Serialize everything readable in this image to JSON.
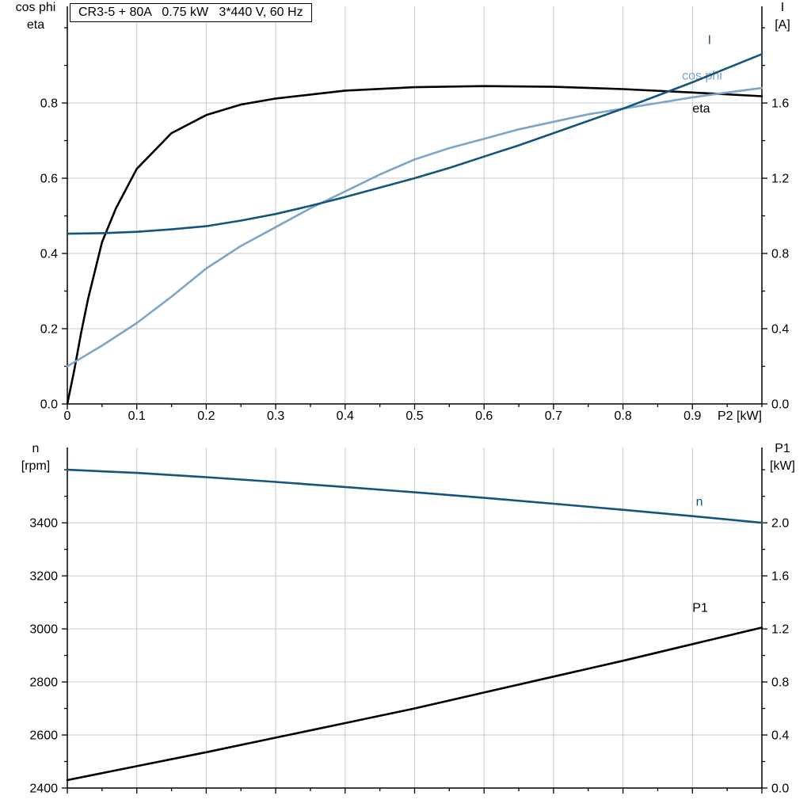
{
  "colors": {
    "dark_blue": "#14557e",
    "light_blue": "#7da4c9",
    "black": "#000000",
    "grid": "#c9c9c9",
    "axis": "#000000"
  },
  "chart_data": [
    {
      "type": "line",
      "title": "CR3-5 + 80A   0.75 kW   3*440 V, 60 Hz",
      "grid": true,
      "legend_position": "end-labels",
      "x_axis": {
        "label": "P2 [kW]",
        "min": 0,
        "max": 1.0,
        "major_ticks": [
          0,
          0.1,
          0.2,
          0.3,
          0.4,
          0.5,
          0.6,
          0.7,
          0.8,
          0.9
        ],
        "tick_labels": [
          "0",
          "0.1",
          "0.2",
          "0.3",
          "0.4",
          "0.5",
          "0.6",
          "0.7",
          "0.8",
          "0.9"
        ],
        "minor_step": 0.05
      },
      "left_axis": {
        "title_lines": [
          "cos phi",
          "eta"
        ],
        "min": 0,
        "max": 1.057,
        "major_ticks": [
          0,
          0.2,
          0.4,
          0.6,
          0.8
        ],
        "tick_labels": [
          "0.0",
          "0.2",
          "0.4",
          "0.6",
          "0.8"
        ],
        "minor_step": 0.1
      },
      "right_axis": {
        "title_lines": [
          "I",
          "[A]"
        ],
        "min": 0,
        "max": 2.114,
        "major_ticks": [
          0,
          0.4,
          0.8,
          1.2,
          1.6
        ],
        "tick_labels": [
          "0.0",
          "0.4",
          "0.8",
          "1.2",
          "1.6"
        ],
        "minor_step": 0.2
      },
      "series": [
        {
          "name": "eta",
          "axis": "left",
          "color": "#000000",
          "x": [
            0,
            0.01,
            0.02,
            0.03,
            0.05,
            0.07,
            0.1,
            0.15,
            0.2,
            0.25,
            0.3,
            0.4,
            0.5,
            0.6,
            0.7,
            0.8,
            0.9,
            1.0
          ],
          "y": [
            0,
            0.09,
            0.19,
            0.28,
            0.43,
            0.52,
            0.625,
            0.72,
            0.768,
            0.796,
            0.812,
            0.833,
            0.842,
            0.845,
            0.843,
            0.837,
            0.828,
            0.818
          ],
          "label": {
            "text": "eta",
            "x": 0.9,
            "y": 0.775
          }
        },
        {
          "name": "cos phi",
          "axis": "left",
          "color": "#7da4c9",
          "x": [
            0,
            0.05,
            0.1,
            0.15,
            0.2,
            0.25,
            0.3,
            0.35,
            0.4,
            0.45,
            0.5,
            0.55,
            0.6,
            0.65,
            0.7,
            0.75,
            0.8,
            0.85,
            0.9,
            0.95,
            1.0
          ],
          "y": [
            0.1,
            0.155,
            0.215,
            0.285,
            0.36,
            0.42,
            0.47,
            0.52,
            0.565,
            0.61,
            0.65,
            0.68,
            0.705,
            0.73,
            0.75,
            0.77,
            0.785,
            0.8,
            0.815,
            0.828,
            0.84
          ],
          "label": {
            "text": "cos phi",
            "x": 0.885,
            "y": 0.862
          }
        },
        {
          "name": "I",
          "axis": "right",
          "color": "#14557e",
          "x": [
            0,
            0.05,
            0.1,
            0.15,
            0.2,
            0.25,
            0.3,
            0.35,
            0.4,
            0.45,
            0.5,
            0.55,
            0.6,
            0.65,
            0.7,
            0.75,
            0.8,
            0.85,
            0.9,
            0.95,
            1.0
          ],
          "y": [
            0.905,
            0.908,
            0.915,
            0.928,
            0.945,
            0.975,
            1.01,
            1.053,
            1.1,
            1.15,
            1.2,
            1.255,
            1.315,
            1.375,
            1.44,
            1.505,
            1.57,
            1.64,
            1.71,
            1.785,
            1.86
          ],
          "label": {
            "text": "I",
            "x": 0.922,
            "y": 1.915
          }
        }
      ]
    },
    {
      "type": "line",
      "title": "",
      "grid": true,
      "legend_position": "end-labels",
      "x_axis": {
        "label": "",
        "min": 0,
        "max": 1.0,
        "major_ticks": [
          0,
          0.1,
          0.2,
          0.3,
          0.4,
          0.5,
          0.6,
          0.7,
          0.8,
          0.9,
          1.0
        ],
        "tick_labels": [],
        "minor_step": 0.05
      },
      "left_axis": {
        "title_lines": [
          "n",
          "[rpm]"
        ],
        "min": 2400,
        "max": 3684,
        "major_ticks": [
          2400,
          2600,
          2800,
          3000,
          3200,
          3400
        ],
        "tick_labels": [
          "2400",
          "2600",
          "2800",
          "3000",
          "3200",
          "3400"
        ],
        "minor_step": 100
      },
      "right_axis": {
        "title_lines": [
          "P1",
          "[kW]"
        ],
        "min": 0,
        "max": 2.568,
        "major_ticks": [
          0,
          0.4,
          0.8,
          1.2,
          1.6,
          2.0
        ],
        "tick_labels": [
          "0.0",
          "0.4",
          "0.8",
          "1.2",
          "1.6",
          "2.0"
        ],
        "minor_step": 0.2
      },
      "series": [
        {
          "name": "n",
          "axis": "left",
          "color": "#14557e",
          "x": [
            0,
            0.1,
            0.2,
            0.3,
            0.4,
            0.5,
            0.6,
            0.7,
            0.8,
            0.9,
            1.0
          ],
          "y": [
            3600,
            3588,
            3572,
            3554,
            3535,
            3515,
            3494,
            3472,
            3449,
            3425,
            3400
          ],
          "label": {
            "text": "n",
            "x": 0.905,
            "y": 3465
          }
        },
        {
          "name": "P1",
          "axis": "right",
          "color": "#000000",
          "x": [
            0,
            0.1,
            0.2,
            0.3,
            0.4,
            0.5,
            0.6,
            0.7,
            0.8,
            0.9,
            1.0
          ],
          "y": [
            0.06,
            0.165,
            0.27,
            0.38,
            0.49,
            0.6,
            0.72,
            0.84,
            0.96,
            1.085,
            1.21
          ],
          "label": {
            "text": "P1",
            "x": 0.9,
            "y": 1.33
          }
        }
      ]
    }
  ]
}
